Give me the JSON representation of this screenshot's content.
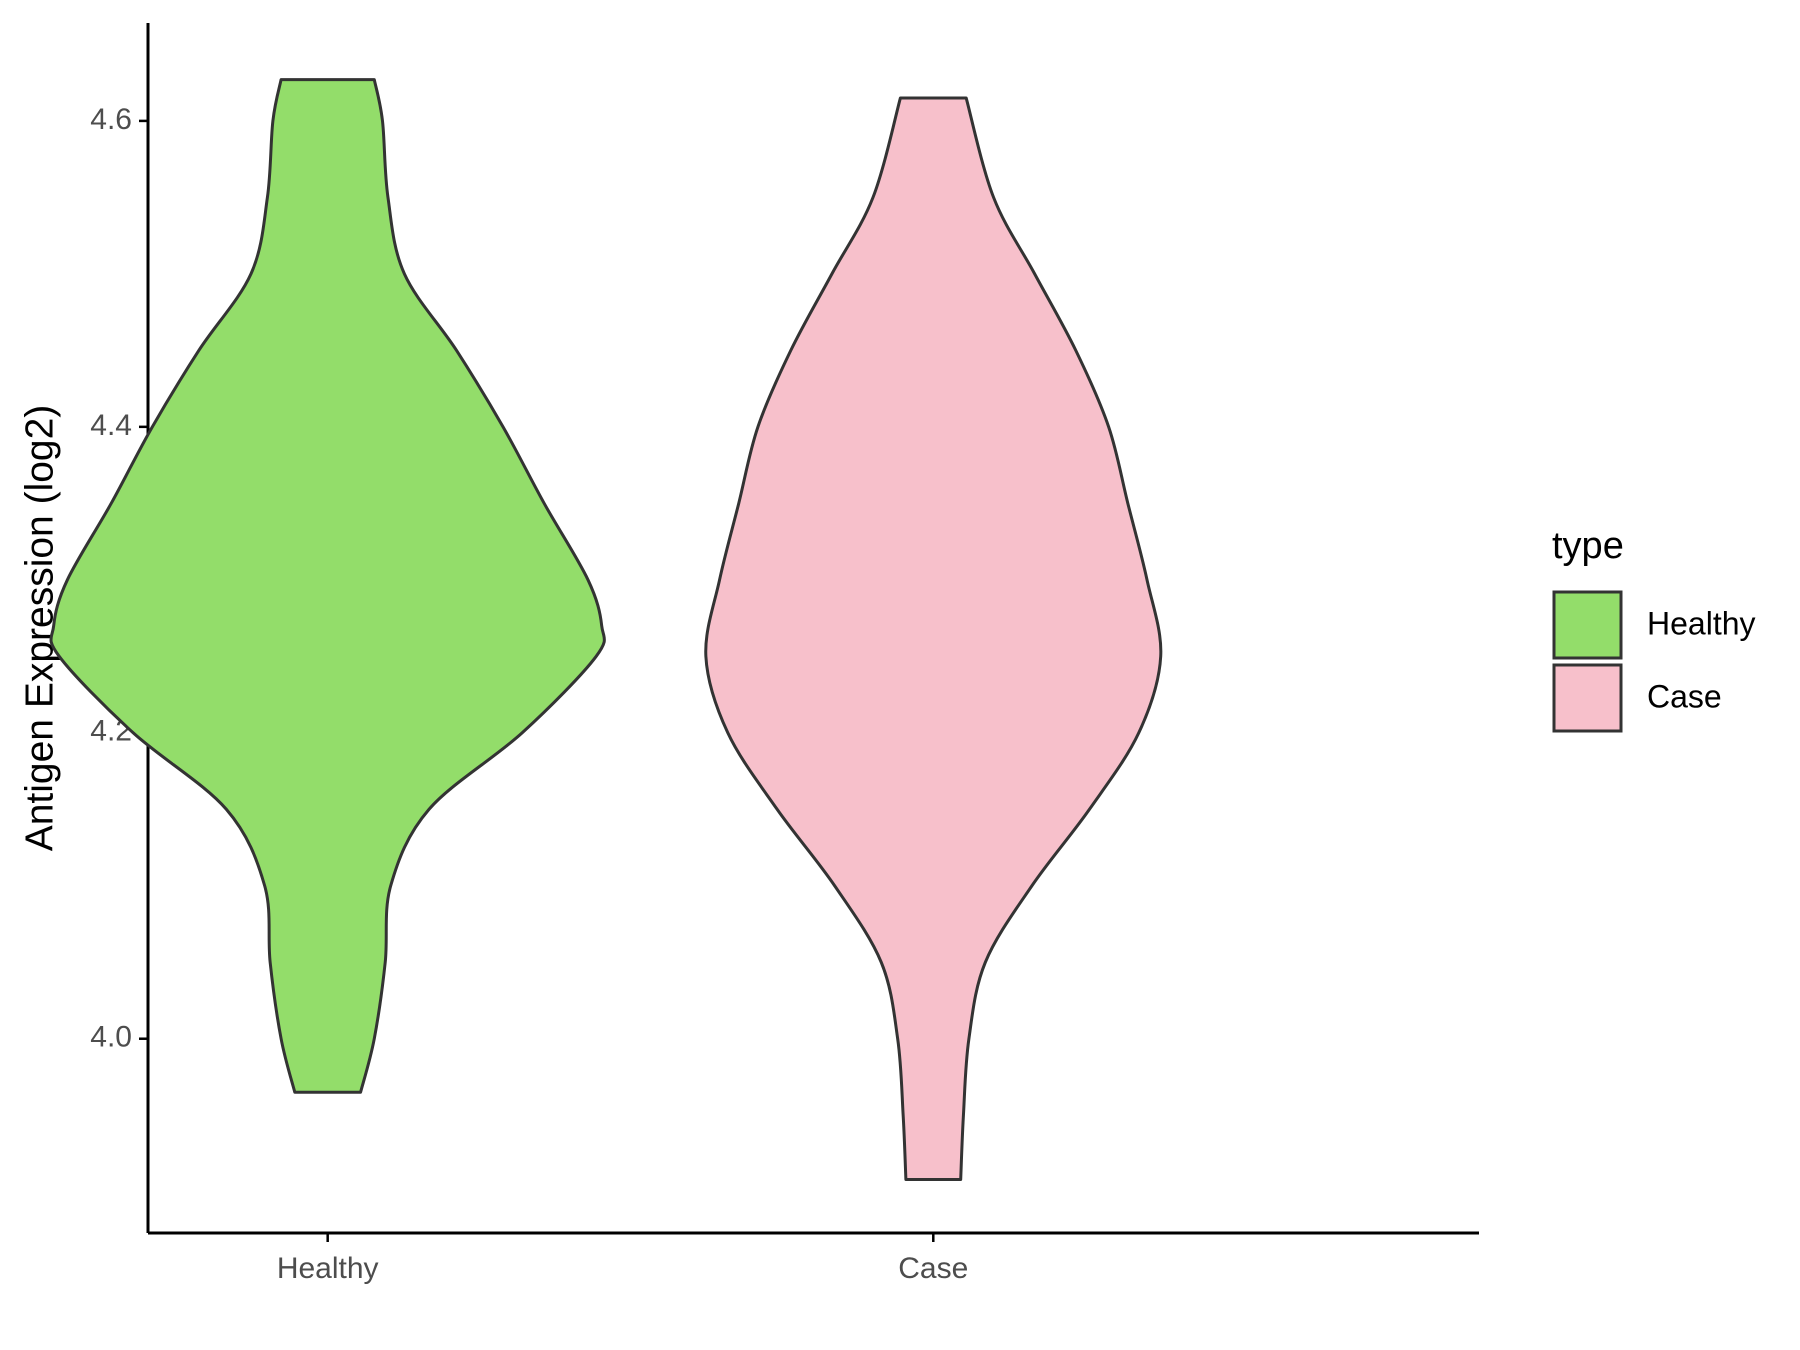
{
  "chart_data": {
    "type": "violin",
    "y_label": "Antigen Expression (log2)",
    "categories": [
      "Healthy",
      "Case"
    ],
    "legend_title": "type",
    "legend_position": "right",
    "outline_color": "#333333",
    "series": [
      {
        "name": "Healthy",
        "color": "#93dd6a",
        "y": [
          3.965,
          4.0,
          4.05,
          4.1,
          4.15,
          4.2,
          4.25,
          4.27,
          4.3,
          4.35,
          4.4,
          4.45,
          4.5,
          4.55,
          4.6,
          4.627
        ],
        "width": [
          0.12,
          0.17,
          0.21,
          0.23,
          0.37,
          0.71,
          0.98,
          1.0,
          0.95,
          0.79,
          0.64,
          0.47,
          0.28,
          0.22,
          0.2,
          0.17
        ]
      },
      {
        "name": "Case",
        "color": "#f7c0cb",
        "y": [
          3.908,
          3.95,
          4.0,
          4.05,
          4.1,
          4.15,
          4.2,
          4.25,
          4.3,
          4.35,
          4.4,
          4.45,
          4.5,
          4.55,
          4.615
        ],
        "width": [
          0.1,
          0.11,
          0.13,
          0.19,
          0.36,
          0.57,
          0.75,
          0.83,
          0.78,
          0.71,
          0.64,
          0.52,
          0.37,
          0.22,
          0.12
        ]
      }
    ],
    "ylim": [
      3.873,
      4.664
    ],
    "yticks": [
      {
        "value": 4,
        "label": "4.0"
      },
      4.2,
      4.4,
      4.6
    ]
  }
}
